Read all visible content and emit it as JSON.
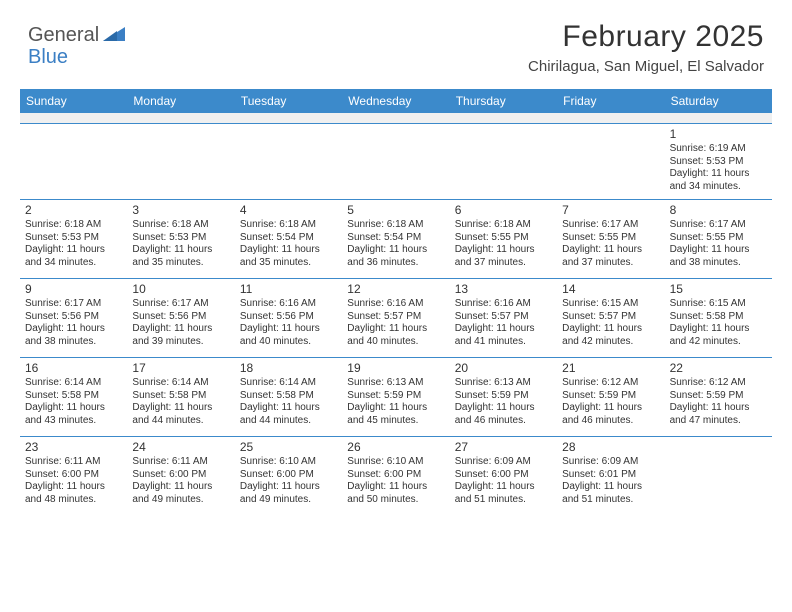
{
  "logo": {
    "textA": "General",
    "textB": "Blue"
  },
  "title": "February 2025",
  "location": "Chirilagua, San Miguel, El Salvador",
  "colors": {
    "header_bg": "#3c8acb",
    "header_text": "#ffffff",
    "border": "#3c8acb",
    "spacer_bg": "#f0f0f0",
    "body_text": "#333333",
    "logo_gray": "#555555",
    "logo_blue": "#3b7fc4"
  },
  "weekdays": [
    "Sunday",
    "Monday",
    "Tuesday",
    "Wednesday",
    "Thursday",
    "Friday",
    "Saturday"
  ],
  "weeks": [
    [
      null,
      null,
      null,
      null,
      null,
      null,
      {
        "n": "1",
        "sr": "6:19 AM",
        "ss": "5:53 PM",
        "dl": "11 hours and 34 minutes."
      }
    ],
    [
      {
        "n": "2",
        "sr": "6:18 AM",
        "ss": "5:53 PM",
        "dl": "11 hours and 34 minutes."
      },
      {
        "n": "3",
        "sr": "6:18 AM",
        "ss": "5:53 PM",
        "dl": "11 hours and 35 minutes."
      },
      {
        "n": "4",
        "sr": "6:18 AM",
        "ss": "5:54 PM",
        "dl": "11 hours and 35 minutes."
      },
      {
        "n": "5",
        "sr": "6:18 AM",
        "ss": "5:54 PM",
        "dl": "11 hours and 36 minutes."
      },
      {
        "n": "6",
        "sr": "6:18 AM",
        "ss": "5:55 PM",
        "dl": "11 hours and 37 minutes."
      },
      {
        "n": "7",
        "sr": "6:17 AM",
        "ss": "5:55 PM",
        "dl": "11 hours and 37 minutes."
      },
      {
        "n": "8",
        "sr": "6:17 AM",
        "ss": "5:55 PM",
        "dl": "11 hours and 38 minutes."
      }
    ],
    [
      {
        "n": "9",
        "sr": "6:17 AM",
        "ss": "5:56 PM",
        "dl": "11 hours and 38 minutes."
      },
      {
        "n": "10",
        "sr": "6:17 AM",
        "ss": "5:56 PM",
        "dl": "11 hours and 39 minutes."
      },
      {
        "n": "11",
        "sr": "6:16 AM",
        "ss": "5:56 PM",
        "dl": "11 hours and 40 minutes."
      },
      {
        "n": "12",
        "sr": "6:16 AM",
        "ss": "5:57 PM",
        "dl": "11 hours and 40 minutes."
      },
      {
        "n": "13",
        "sr": "6:16 AM",
        "ss": "5:57 PM",
        "dl": "11 hours and 41 minutes."
      },
      {
        "n": "14",
        "sr": "6:15 AM",
        "ss": "5:57 PM",
        "dl": "11 hours and 42 minutes."
      },
      {
        "n": "15",
        "sr": "6:15 AM",
        "ss": "5:58 PM",
        "dl": "11 hours and 42 minutes."
      }
    ],
    [
      {
        "n": "16",
        "sr": "6:14 AM",
        "ss": "5:58 PM",
        "dl": "11 hours and 43 minutes."
      },
      {
        "n": "17",
        "sr": "6:14 AM",
        "ss": "5:58 PM",
        "dl": "11 hours and 44 minutes."
      },
      {
        "n": "18",
        "sr": "6:14 AM",
        "ss": "5:58 PM",
        "dl": "11 hours and 44 minutes."
      },
      {
        "n": "19",
        "sr": "6:13 AM",
        "ss": "5:59 PM",
        "dl": "11 hours and 45 minutes."
      },
      {
        "n": "20",
        "sr": "6:13 AM",
        "ss": "5:59 PM",
        "dl": "11 hours and 46 minutes."
      },
      {
        "n": "21",
        "sr": "6:12 AM",
        "ss": "5:59 PM",
        "dl": "11 hours and 46 minutes."
      },
      {
        "n": "22",
        "sr": "6:12 AM",
        "ss": "5:59 PM",
        "dl": "11 hours and 47 minutes."
      }
    ],
    [
      {
        "n": "23",
        "sr": "6:11 AM",
        "ss": "6:00 PM",
        "dl": "11 hours and 48 minutes."
      },
      {
        "n": "24",
        "sr": "6:11 AM",
        "ss": "6:00 PM",
        "dl": "11 hours and 49 minutes."
      },
      {
        "n": "25",
        "sr": "6:10 AM",
        "ss": "6:00 PM",
        "dl": "11 hours and 49 minutes."
      },
      {
        "n": "26",
        "sr": "6:10 AM",
        "ss": "6:00 PM",
        "dl": "11 hours and 50 minutes."
      },
      {
        "n": "27",
        "sr": "6:09 AM",
        "ss": "6:00 PM",
        "dl": "11 hours and 51 minutes."
      },
      {
        "n": "28",
        "sr": "6:09 AM",
        "ss": "6:01 PM",
        "dl": "11 hours and 51 minutes."
      },
      null
    ]
  ],
  "labels": {
    "sunrise": "Sunrise:",
    "sunset": "Sunset:",
    "daylight": "Daylight:"
  }
}
